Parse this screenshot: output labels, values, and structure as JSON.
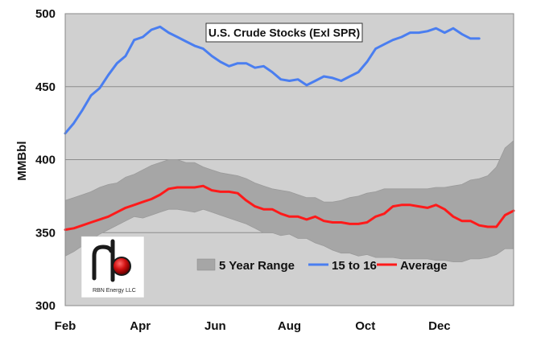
{
  "chart_data": {
    "type": "line",
    "title": "U.S. Crude Stocks (Exl SPR)",
    "ylabel": "MMBbl",
    "xlabel": "",
    "ylim": [
      300,
      500
    ],
    "yticks": [
      300,
      350,
      400,
      450,
      500
    ],
    "xlim": [
      1,
      53
    ],
    "xticks": [
      {
        "label": "Feb",
        "week": 1
      },
      {
        "label": "Apr",
        "week": 9.7
      },
      {
        "label": "Jun",
        "week": 18.4
      },
      {
        "label": "Aug",
        "week": 27
      },
      {
        "label": "Oct",
        "week": 35.8
      },
      {
        "label": "Dec",
        "week": 44.4
      }
    ],
    "grid": "horizontal",
    "plot_background": "#d0d0d0",
    "legend_position": "bottom-right",
    "series": [
      {
        "name": "5 Year Range",
        "type": "band",
        "color": "#a6a6a6",
        "x": [
          1,
          2,
          3,
          4,
          5,
          6,
          7,
          8,
          9,
          10,
          11,
          12,
          13,
          14,
          15,
          16,
          17,
          18,
          19,
          20,
          21,
          22,
          23,
          24,
          25,
          26,
          27,
          28,
          29,
          30,
          31,
          32,
          33,
          34,
          35,
          36,
          37,
          38,
          39,
          40,
          41,
          42,
          43,
          44,
          45,
          46,
          47,
          48,
          49,
          50,
          51,
          52,
          53
        ],
        "low": [
          334,
          337,
          341,
          345,
          349,
          352,
          355,
          358,
          361,
          360,
          362,
          364,
          366,
          366,
          365,
          364,
          366,
          364,
          362,
          360,
          358,
          356,
          353,
          350,
          350,
          348,
          349,
          346,
          346,
          343,
          341,
          338,
          336,
          336,
          334,
          335,
          333,
          333,
          333,
          332,
          332,
          332,
          332,
          331,
          331,
          330,
          330,
          332,
          332,
          333,
          335,
          339,
          339
        ],
        "high": [
          372,
          374,
          376,
          378,
          381,
          383,
          384,
          388,
          390,
          393,
          396,
          398,
          400,
          400,
          398,
          398,
          395,
          393,
          391,
          390,
          389,
          387,
          384,
          382,
          380,
          379,
          378,
          376,
          374,
          374,
          371,
          371,
          372,
          374,
          375,
          377,
          378,
          380,
          380,
          380,
          380,
          380,
          380,
          381,
          381,
          382,
          383,
          386,
          387,
          389,
          395,
          408,
          413
        ]
      },
      {
        "name": "15 to 16",
        "type": "line",
        "color": "#4a7ef0",
        "x": [
          1,
          2,
          3,
          4,
          5,
          6,
          7,
          8,
          9,
          10,
          11,
          12,
          13,
          14,
          15,
          16,
          17,
          18,
          19,
          20,
          21,
          22,
          23,
          24,
          25,
          26,
          27,
          28,
          29,
          30,
          31,
          32,
          33,
          34,
          35,
          36,
          37,
          38,
          39,
          40,
          41,
          42,
          43,
          44,
          45,
          46,
          47,
          48,
          49
        ],
        "values": [
          418,
          425,
          434,
          444,
          449,
          458,
          466,
          471,
          482,
          484,
          489,
          491,
          487,
          484,
          481,
          478,
          476,
          471,
          467,
          464,
          466,
          466,
          463,
          464,
          460,
          455,
          454,
          455,
          451,
          454,
          457,
          456,
          454,
          457,
          460,
          467,
          476,
          479,
          482,
          484,
          487,
          487,
          488,
          490,
          487,
          490,
          486,
          483,
          483
        ]
      },
      {
        "name": "Average",
        "type": "line",
        "color": "#ff1a1a",
        "x": [
          1,
          2,
          3,
          4,
          5,
          6,
          7,
          8,
          9,
          10,
          11,
          12,
          13,
          14,
          15,
          16,
          17,
          18,
          19,
          20,
          21,
          22,
          23,
          24,
          25,
          26,
          27,
          28,
          29,
          30,
          31,
          32,
          33,
          34,
          35,
          36,
          37,
          38,
          39,
          40,
          41,
          42,
          43,
          44,
          45,
          46,
          47,
          48,
          49,
          50,
          51,
          52,
          53
        ],
        "values": [
          352,
          353,
          355,
          357,
          359,
          361,
          364,
          367,
          369,
          371,
          373,
          376,
          380,
          381,
          381,
          381,
          382,
          379,
          378,
          378,
          377,
          372,
          368,
          366,
          366,
          363,
          361,
          361,
          359,
          361,
          358,
          357,
          357,
          356,
          356,
          357,
          361,
          363,
          368,
          369,
          369,
          368,
          367,
          369,
          366,
          361,
          358,
          358,
          355,
          354,
          354,
          362,
          365
        ]
      }
    ]
  },
  "logo": {
    "text": "RBN Energy",
    "suffix": "LLC"
  }
}
